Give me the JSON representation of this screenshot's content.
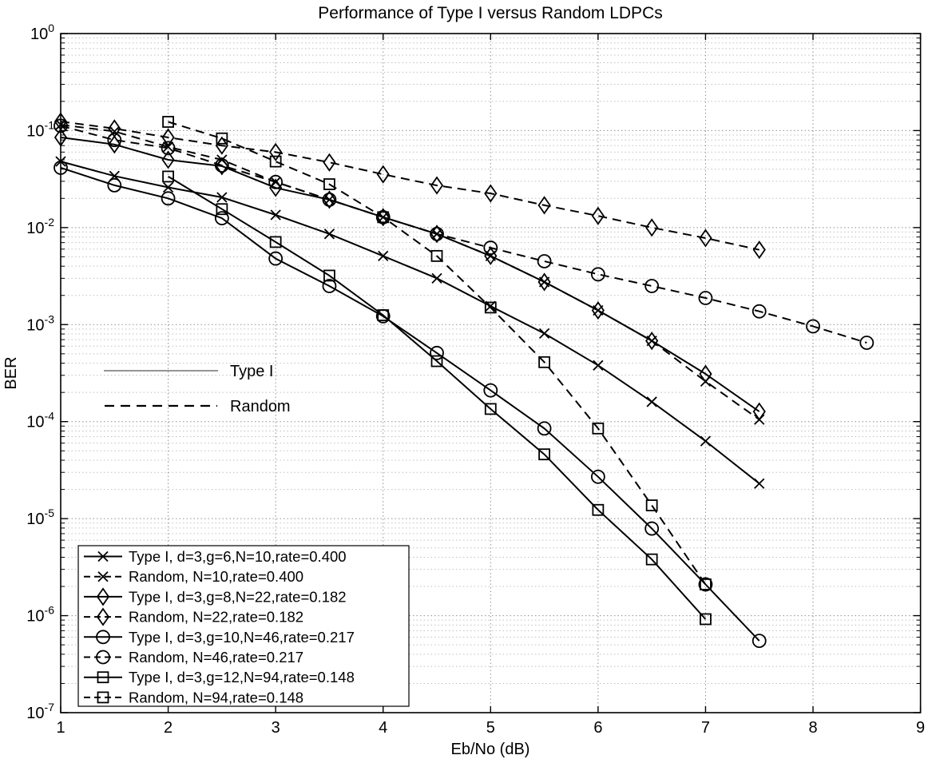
{
  "title": "Performance of Type I versus Random LDPCs",
  "xlabel": "Eb/No (dB)",
  "ylabel": "BER",
  "annotation_legend": {
    "solid_label": "Type I",
    "dashed_label": "Random"
  },
  "colors": {
    "line": "#000000",
    "grid_major": "#8f8f8f",
    "grid_minor": "#c0c0c0",
    "background": "#ffffff",
    "annotation_solid": "#555555"
  },
  "chart_data": {
    "type": "line",
    "title": "Performance of Type I versus Random LDPCs",
    "xlabel": "Eb/No (dB)",
    "ylabel": "BER",
    "yscale": "log",
    "xlim": [
      1,
      9
    ],
    "ylim": [
      1e-07,
      1
    ],
    "x_ticks": [
      1,
      2,
      3,
      4,
      5,
      6,
      7,
      8,
      9
    ],
    "y_tick_exponents": [
      0,
      -1,
      -2,
      -3,
      -4,
      -5,
      -6,
      -7
    ],
    "grid": true,
    "legend_position": "lower-left",
    "series": [
      {
        "name": "Type I, d=3,g=6,N=10,rate=0.400",
        "style": "solid",
        "marker": "x",
        "x": [
          1,
          1.5,
          2,
          2.5,
          3,
          3.5,
          4,
          4.5,
          5,
          5.5,
          6,
          6.5,
          7,
          7.5
        ],
        "y": [
          0.048,
          0.034,
          0.026,
          0.0205,
          0.0135,
          0.0086,
          0.0051,
          0.003,
          0.00155,
          0.00081,
          0.00038,
          0.00016,
          6.3e-05,
          2.3e-05
        ]
      },
      {
        "name": "Random, N=10,rate=0.400",
        "style": "dashed",
        "marker": "x",
        "x": [
          1,
          1.5,
          2,
          2.5,
          3,
          3.5,
          4,
          4.5,
          5,
          5.5,
          6,
          6.5,
          7,
          7.5
        ],
        "y": [
          0.115,
          0.098,
          0.068,
          0.05,
          0.0295,
          0.0194,
          0.0128,
          0.0086,
          0.0051,
          0.00275,
          0.0014,
          0.00068,
          0.00026,
          0.000105
        ]
      },
      {
        "name": "Type I, d=3,g=8,N=22,rate=0.182",
        "style": "solid",
        "marker": "diamond",
        "x": [
          1,
          1.5,
          2,
          2.5,
          3,
          3.5,
          4,
          4.5,
          5,
          5.5,
          6,
          6.5,
          7,
          7.5
        ],
        "y": [
          0.085,
          0.072,
          0.05,
          0.043,
          0.0257,
          0.0194,
          0.0128,
          0.0086,
          0.0051,
          0.00275,
          0.0014,
          0.00068,
          0.00031,
          0.000127
        ]
      },
      {
        "name": "Random, N=22,rate=0.182",
        "style": "dashed",
        "marker": "diamond",
        "x": [
          1,
          1.5,
          2,
          2.5,
          3,
          3.5,
          4,
          4.5,
          5,
          5.5,
          6,
          6.5,
          7,
          7.5
        ],
        "y": [
          0.124,
          0.105,
          0.085,
          0.07,
          0.06,
          0.047,
          0.0354,
          0.0272,
          0.0225,
          0.017,
          0.0132,
          0.01,
          0.0078,
          0.0059
        ]
      },
      {
        "name": "Type I, d=3,g=10,N=46,rate=0.217",
        "style": "solid",
        "marker": "circle",
        "x": [
          1,
          1.5,
          2,
          2.5,
          3,
          3.5,
          4,
          4.5,
          5,
          5.5,
          6,
          6.5,
          7,
          7.5
        ],
        "y": [
          0.0414,
          0.0273,
          0.02,
          0.0125,
          0.0048,
          0.0025,
          0.00122,
          0.00051,
          0.00021,
          8.5e-05,
          2.7e-05,
          7.9e-06,
          2.1e-06,
          5.5e-07
        ]
      },
      {
        "name": "Random, N=46,rate=0.217",
        "style": "dashed",
        "marker": "circle",
        "x": [
          1,
          1.5,
          2,
          2.5,
          3,
          3.5,
          4,
          4.5,
          5,
          5.5,
          6,
          6.5,
          7,
          7.5,
          8,
          8.5
        ],
        "y": [
          0.112,
          0.08,
          0.066,
          0.0437,
          0.0295,
          0.0194,
          0.0128,
          0.0086,
          0.0062,
          0.0045,
          0.0033,
          0.0025,
          0.00188,
          0.00137,
          0.00096,
          0.00065
        ]
      },
      {
        "name": "Type I, d=3,g=12,N=94,rate=0.148",
        "style": "solid",
        "marker": "square",
        "x": [
          2,
          2.5,
          3,
          3.5,
          4,
          4.5,
          5,
          5.5,
          6,
          6.5,
          7
        ],
        "y": [
          0.0336,
          0.0155,
          0.0071,
          0.0032,
          0.00125,
          0.00042,
          0.000135,
          4.6e-05,
          1.23e-05,
          3.8e-06,
          9.2e-07
        ]
      },
      {
        "name": "Random, N=94,rate=0.148",
        "style": "dashed",
        "marker": "square",
        "x": [
          2,
          2.5,
          3,
          3.5,
          4,
          4.5,
          5,
          5.5,
          6,
          6.5,
          7
        ],
        "y": [
          0.123,
          0.083,
          0.048,
          0.028,
          0.0128,
          0.0051,
          0.0015,
          0.00041,
          8.5e-05,
          1.37e-05,
          2.1e-06
        ]
      }
    ]
  }
}
